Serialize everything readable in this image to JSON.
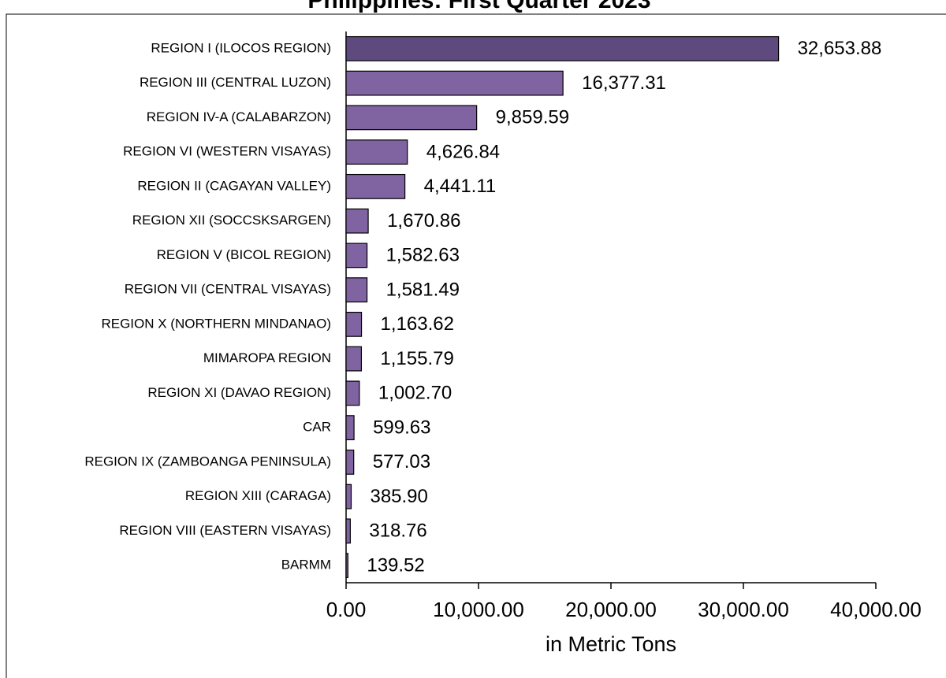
{
  "chart_data": {
    "type": "hbar",
    "title": "Philippines: First Quarter 2023",
    "x_label": "in Metric Tons",
    "categories": [
      "REGION I (ILOCOS REGION)",
      "REGION III (CENTRAL LUZON)",
      "REGION IV-A (CALABARZON)",
      "REGION VI (WESTERN VISAYAS)",
      "REGION II (CAGAYAN VALLEY)",
      "REGION XII (SOCCSKSARGEN)",
      "REGION V (BICOL REGION)",
      "REGION VII (CENTRAL VISAYAS)",
      "REGION X (NORTHERN MINDANAO)",
      "MIMAROPA REGION",
      "REGION XI (DAVAO REGION)",
      "CAR",
      "REGION IX (ZAMBOANGA PENINSULA)",
      "REGION XIII (CARAGA)",
      "REGION VIII (EASTERN VISAYAS)",
      "BARMM"
    ],
    "values": [
      32653.88,
      16377.31,
      9859.59,
      4626.84,
      4441.11,
      1670.86,
      1582.63,
      1581.49,
      1163.62,
      1155.79,
      1002.7,
      599.63,
      577.03,
      385.9,
      318.76,
      139.52
    ],
    "value_labels": [
      "32,653.88",
      "16,377.31",
      "9,859.59",
      "4,626.84",
      "4,441.11",
      "1,670.86",
      "1,582.63",
      "1,581.49",
      "1,163.62",
      "1,155.79",
      "1,002.70",
      "599.63",
      "577.03",
      "385.90",
      "318.76",
      "139.52"
    ],
    "colors": [
      "#5e4a7e",
      "#8064a2",
      "#8064a2",
      "#8064a2",
      "#8064a2",
      "#8064a2",
      "#8064a2",
      "#8064a2",
      "#8064a2",
      "#8064a2",
      "#8064a2",
      "#8064a2",
      "#8064a2",
      "#8064a2",
      "#8064a2",
      "#8064a2"
    ],
    "xlim": [
      0,
      40000
    ],
    "xticks": [
      {
        "value": 0,
        "label": "0.00"
      },
      {
        "value": 10000,
        "label": "10,000.00"
      },
      {
        "value": 20000,
        "label": "20,000.00"
      },
      {
        "value": 30000,
        "label": "30,000.00"
      },
      {
        "value": 40000,
        "label": "40,000.00"
      }
    ]
  }
}
